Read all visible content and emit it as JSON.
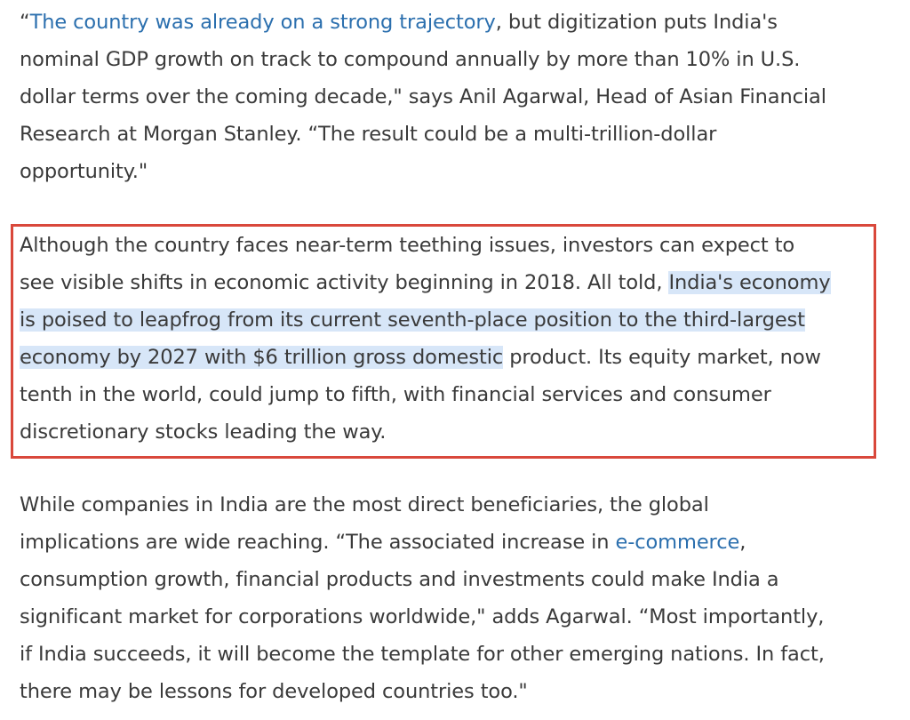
{
  "article": {
    "paragraph_1": {
      "lines": [
        {
          "pre": "“",
          "link": "The country was already on a strong trajectory",
          "post": ", but digitization puts India's"
        },
        {
          "text": "nominal GDP growth on track to compound annually by more than 10% in U.S."
        },
        {
          "text": "dollar terms over the coming decade,\" says Anil Agarwal, Head of Asian Financial"
        },
        {
          "text": "Research at Morgan Stanley. “The result could be a multi-trillion-dollar"
        },
        {
          "text": "opportunity.\""
        }
      ]
    },
    "paragraph_2": {
      "lines": [
        {
          "text": "Although the country faces near-term teething issues, investors can expect to"
        },
        {
          "pre": "see visible shifts in economic activity beginning in 2018. All told, ",
          "hl": "India's economy"
        },
        {
          "hl": "is poised to leapfrog from its current seventh-place position to the third-largest"
        },
        {
          "hl": "economy by 2027 with $6 trillion gross domestic",
          "post": " product. Its equity market, now"
        },
        {
          "text": "tenth in the world, could jump to fifth, with financial services and consumer"
        },
        {
          "text": "discretionary stocks leading the way."
        }
      ]
    },
    "paragraph_3": {
      "lines": [
        {
          "text": "While companies in India are the most direct beneficiaries, the global"
        },
        {
          "pre": "implications are wide reaching. “The associated increase in ",
          "link": "e-commerce",
          "post": ","
        },
        {
          "text": "consumption growth, financial products and investments could make India a"
        },
        {
          "text": "significant market for corporations worldwide,\" adds Agarwal. “Most importantly,"
        },
        {
          "text": "if India succeeds, it will become the template for other emerging nations. In fact,"
        },
        {
          "text": "there may be lessons for developed countries too.\""
        }
      ]
    }
  },
  "colors": {
    "text": "#3a3a3a",
    "link": "#2b6fae",
    "highlight": "#d7e6f8",
    "callout_border": "#d9483b"
  }
}
